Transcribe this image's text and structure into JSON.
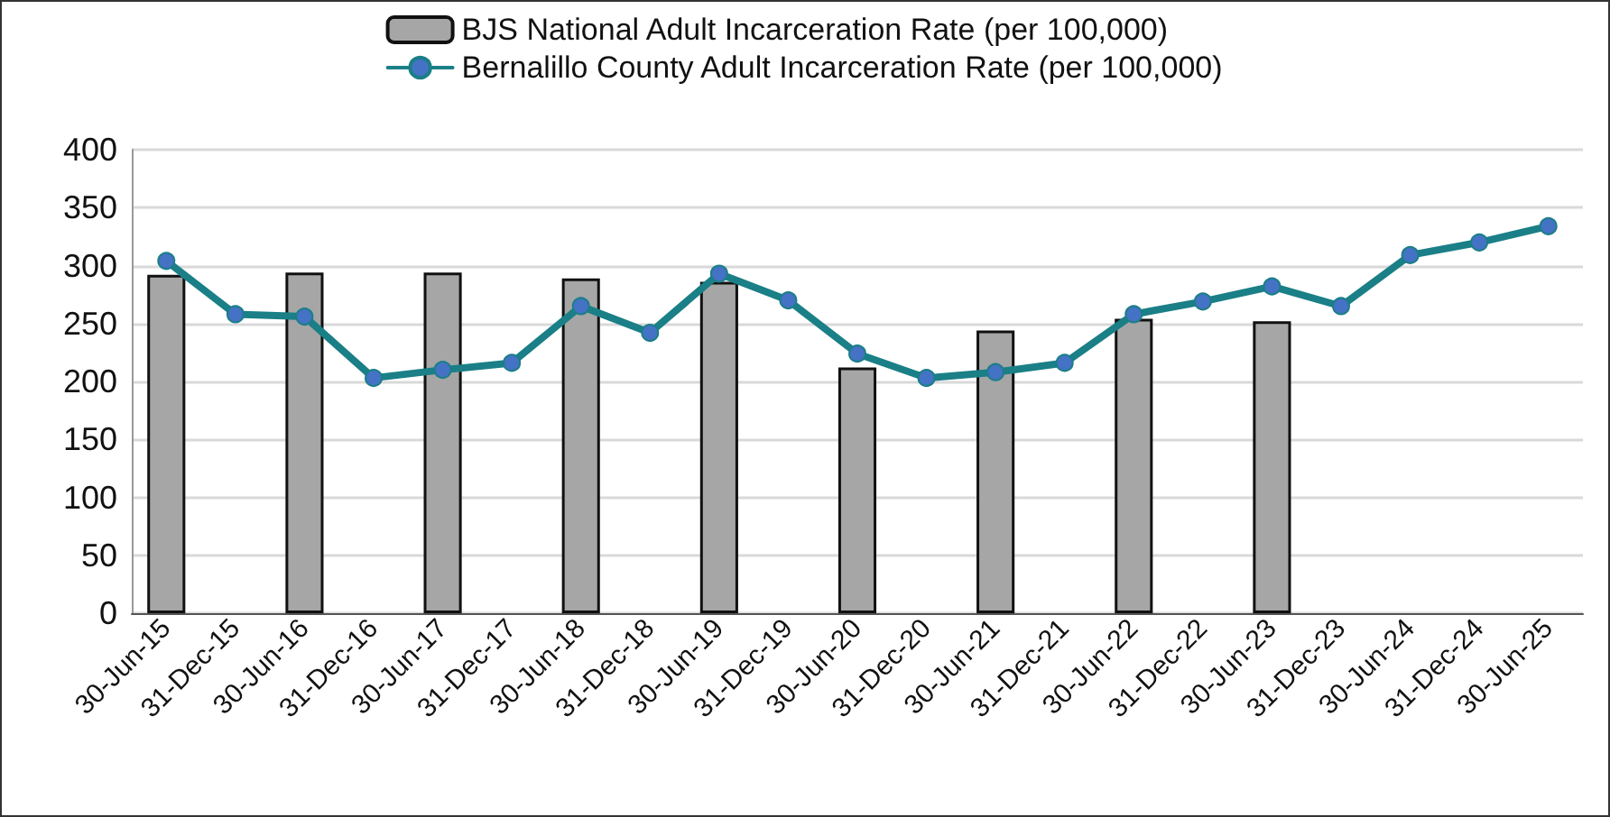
{
  "chart_data": {
    "type": "bar",
    "categories": [
      "30-Jun-15",
      "31-Dec-15",
      "30-Jun-16",
      "31-Dec-16",
      "30-Jun-17",
      "31-Dec-17",
      "30-Jun-18",
      "31-Dec-18",
      "30-Jun-19",
      "31-Dec-19",
      "30-Jun-20",
      "31-Dec-20",
      "30-Jun-21",
      "31-Dec-21",
      "30-Jun-22",
      "31-Dec-22",
      "30-Jun-23",
      "31-Dec-23",
      "30-Jun-24",
      "31-Dec-24",
      "30-Jun-25"
    ],
    "series": [
      {
        "name": "BJS National Adult Incarceration Rate (per 100,000)",
        "color": "#a6a6a6",
        "values": [
          292,
          null,
          294,
          null,
          294,
          null,
          289,
          null,
          286,
          null,
          212,
          null,
          244,
          null,
          254,
          null,
          252,
          null,
          null,
          null,
          null
        ]
      },
      {
        "name": "Bernalillo County Adult Incarceration Rate (per 100,000)",
        "type": "line",
        "color": "#1a7f86",
        "values": [
          304,
          258,
          256,
          203,
          210,
          216,
          265,
          242,
          293,
          270,
          224,
          203,
          208,
          216,
          258,
          269,
          282,
          265,
          309,
          320,
          334
        ]
      }
    ],
    "ylim": [
      0,
      400
    ],
    "yticks": [
      0,
      50,
      100,
      150,
      200,
      250,
      300,
      350,
      400
    ],
    "grid": "y",
    "legend": "top",
    "marker": "circle",
    "line_style": "solid"
  }
}
